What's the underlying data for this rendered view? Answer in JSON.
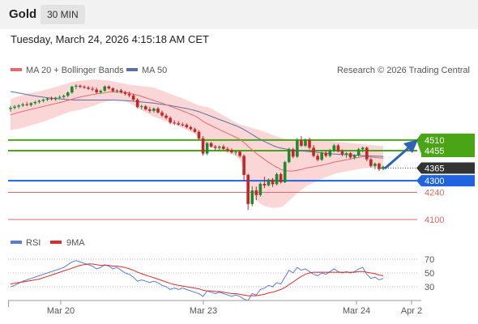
{
  "header": {
    "instrument": "Gold",
    "timeframe": "30 MIN",
    "datetime": "Tuesday, March 24, 2026 4:15:18 AM CET"
  },
  "legend": {
    "ma20": "MA 20 + Bollinger Bands",
    "ma50": "MA 50",
    "copyright": "Research © 2026 Trading Central",
    "rsi": "RSI",
    "rsi_ma": "9MA"
  },
  "colors": {
    "candle_up": "#1e8a2e",
    "candle_down": "#c42626",
    "ma20": "#e26a6a",
    "ma50": "#5b6fa8",
    "bollinger_fill": "#fbd6d6",
    "resistance": "#4aa516",
    "pivot": "#1f63e0",
    "support": "#e06a6a",
    "last_price": "#333333",
    "rsi": "#5b7bd6",
    "rsi_ma": "#d33030"
  },
  "chart_data": {
    "type": "candlestick",
    "x_ticks": [
      "Mar 20",
      "Mar 23",
      "Mar 24",
      "Apr 2"
    ],
    "last_price": "4365",
    "levels": [
      {
        "value": "4510",
        "type": "resistance"
      },
      {
        "value": "4455",
        "type": "resistance"
      },
      {
        "value": "4300",
        "type": "pivot"
      },
      {
        "value": "4240",
        "type": "support"
      },
      {
        "value": "4100",
        "type": "support"
      }
    ],
    "ohlc": [
      [
        4670,
        4685,
        4655,
        4676
      ],
      [
        4676,
        4690,
        4668,
        4682
      ],
      [
        4682,
        4695,
        4672,
        4688
      ],
      [
        4688,
        4702,
        4680,
        4694
      ],
      [
        4694,
        4706,
        4684,
        4690
      ],
      [
        4690,
        4704,
        4682,
        4700
      ],
      [
        4700,
        4712,
        4692,
        4706
      ],
      [
        4706,
        4718,
        4698,
        4712
      ],
      [
        4712,
        4724,
        4704,
        4718
      ],
      [
        4718,
        4730,
        4710,
        4724
      ],
      [
        4724,
        4734,
        4714,
        4720
      ],
      [
        4720,
        4732,
        4712,
        4728
      ],
      [
        4728,
        4740,
        4720,
        4732
      ],
      [
        4732,
        4744,
        4724,
        4738
      ],
      [
        4738,
        4760,
        4730,
        4755
      ],
      [
        4755,
        4790,
        4748,
        4785
      ],
      [
        4785,
        4798,
        4772,
        4790
      ],
      [
        4790,
        4796,
        4778,
        4784
      ],
      [
        4784,
        4792,
        4774,
        4780
      ],
      [
        4780,
        4788,
        4768,
        4774
      ],
      [
        4774,
        4784,
        4762,
        4770
      ],
      [
        4770,
        4780,
        4748,
        4756
      ],
      [
        4756,
        4770,
        4748,
        4764
      ],
      [
        4764,
        4792,
        4760,
        4786
      ],
      [
        4786,
        4792,
        4770,
        4776
      ],
      [
        4776,
        4782,
        4756,
        4762
      ],
      [
        4762,
        4772,
        4752,
        4766
      ],
      [
        4766,
        4774,
        4750,
        4756
      ],
      [
        4756,
        4764,
        4740,
        4748
      ],
      [
        4748,
        4760,
        4730,
        4740
      ],
      [
        4740,
        4748,
        4710,
        4718
      ],
      [
        4718,
        4726,
        4672,
        4680
      ],
      [
        4680,
        4692,
        4668,
        4684
      ],
      [
        4684,
        4690,
        4662,
        4668
      ],
      [
        4668,
        4680,
        4650,
        4660
      ],
      [
        4660,
        4678,
        4652,
        4672
      ],
      [
        4672,
        4680,
        4646,
        4652
      ],
      [
        4652,
        4662,
        4628,
        4636
      ],
      [
        4636,
        4646,
        4616,
        4624
      ],
      [
        4624,
        4632,
        4592,
        4600
      ],
      [
        4600,
        4612,
        4588,
        4596
      ],
      [
        4596,
        4608,
        4584,
        4590
      ],
      [
        4590,
        4600,
        4580,
        4588
      ],
      [
        4588,
        4596,
        4570,
        4576
      ],
      [
        4576,
        4584,
        4560,
        4566
      ],
      [
        4566,
        4574,
        4548,
        4552
      ],
      [
        4552,
        4560,
        4510,
        4518
      ],
      [
        4518,
        4530,
        4430,
        4440
      ],
      [
        4440,
        4500,
        4432,
        4494
      ],
      [
        4494,
        4500,
        4470,
        4476
      ],
      [
        4476,
        4484,
        4456,
        4470
      ],
      [
        4470,
        4482,
        4454,
        4476
      ],
      [
        4476,
        4486,
        4458,
        4464
      ],
      [
        4464,
        4474,
        4448,
        4458
      ],
      [
        4458,
        4466,
        4440,
        4446
      ],
      [
        4446,
        4456,
        4432,
        4450
      ],
      [
        4450,
        4456,
        4420,
        4428
      ],
      [
        4428,
        4436,
        4300,
        4330
      ],
      [
        4330,
        4336,
        4150,
        4180
      ],
      [
        4180,
        4272,
        4168,
        4250
      ],
      [
        4250,
        4270,
        4200,
        4226
      ],
      [
        4226,
        4292,
        4218,
        4284
      ],
      [
        4284,
        4320,
        4262,
        4276
      ],
      [
        4276,
        4312,
        4270,
        4306
      ],
      [
        4306,
        4314,
        4268,
        4282
      ],
      [
        4282,
        4342,
        4276,
        4334
      ],
      [
        4334,
        4342,
        4286,
        4292
      ],
      [
        4292,
        4402,
        4288,
        4396
      ],
      [
        4396,
        4470,
        4390,
        4462
      ],
      [
        4462,
        4470,
        4416,
        4424
      ],
      [
        4424,
        4520,
        4418,
        4508
      ],
      [
        4508,
        4530,
        4474,
        4480
      ],
      [
        4480,
        4518,
        4474,
        4512
      ],
      [
        4512,
        4522,
        4462,
        4470
      ],
      [
        4470,
        4484,
        4420,
        4428
      ],
      [
        4428,
        4440,
        4400,
        4408
      ],
      [
        4408,
        4450,
        4402,
        4444
      ],
      [
        4444,
        4456,
        4420,
        4428
      ],
      [
        4428,
        4464,
        4420,
        4456
      ],
      [
        4456,
        4490,
        4448,
        4482
      ],
      [
        4482,
        4490,
        4446,
        4452
      ],
      [
        4452,
        4462,
        4426,
        4436
      ],
      [
        4436,
        4448,
        4418,
        4442
      ],
      [
        4442,
        4448,
        4414,
        4420
      ],
      [
        4420,
        4436,
        4410,
        4430
      ],
      [
        4430,
        4470,
        4424,
        4462
      ],
      [
        4462,
        4476,
        4446,
        4470
      ],
      [
        4470,
        4476,
        4400,
        4410
      ],
      [
        4410,
        4418,
        4368,
        4376
      ],
      [
        4376,
        4394,
        4360,
        4388
      ],
      [
        4388,
        4394,
        4350,
        4360
      ],
      [
        4360,
        4378,
        4354,
        4372
      ]
    ],
    "ma20": [
      4640,
      4646,
      4652,
      4658,
      4663,
      4668,
      4673,
      4678,
      4683,
      4688,
      4693,
      4698,
      4703,
      4708,
      4714,
      4720,
      4726,
      4731,
      4736,
      4740,
      4744,
      4748,
      4751,
      4754,
      4757,
      4758,
      4758,
      4757,
      4755,
      4752,
      4747,
      4741,
      4735,
      4728,
      4721,
      4714,
      4707,
      4700,
      4692,
      4684,
      4676,
      4668,
      4660,
      4652,
      4643,
      4634,
      4622,
      4606,
      4595,
      4584,
      4574,
      4564,
      4554,
      4544,
      4534,
      4524,
      4513,
      4498,
      4477,
      4459,
      4441,
      4425,
      4410,
      4395,
      4382,
      4370,
      4358,
      4352,
      4350,
      4350,
      4354,
      4358,
      4364,
      4368,
      4372,
      4376,
      4380,
      4385,
      4390,
      4396,
      4400,
      4404,
      4408,
      4412,
      4416,
      4420,
      4424,
      4424,
      4422,
      4420,
      4418,
      4416
    ],
    "ma50": [
      4760,
      4756,
      4752,
      4748,
      4744,
      4740,
      4737,
      4734,
      4731,
      4728,
      4726,
      4724,
      4722,
      4720,
      4718,
      4717,
      4716,
      4716,
      4716,
      4716,
      4716,
      4716,
      4716,
      4716,
      4716,
      4716,
      4715,
      4714,
      4713,
      4712,
      4710,
      4708,
      4706,
      4704,
      4702,
      4700,
      4697,
      4694,
      4691,
      4688,
      4684,
      4680,
      4676,
      4672,
      4667,
      4662,
      4656,
      4648,
      4640,
      4632,
      4624,
      4616,
      4608,
      4600,
      4592,
      4584,
      4575,
      4564,
      4551,
      4538,
      4525,
      4513,
      4502,
      4492,
      4482,
      4474,
      4468,
      4464,
      4461,
      4458,
      4456,
      4454,
      4452,
      4450,
      4448,
      4446,
      4444,
      4442,
      4440,
      4438,
      4436,
      4435,
      4434,
      4433,
      4432,
      4431,
      4430,
      4429,
      4428,
      4427,
      4426,
      4425
    ],
    "bb_upper": [
      4720,
      4728,
      4736,
      4742,
      4748,
      4752,
      4756,
      4760,
      4766,
      4772,
      4778,
      4784,
      4790,
      4796,
      4802,
      4808,
      4812,
      4816,
      4818,
      4820,
      4822,
      4822,
      4820,
      4818,
      4816,
      4812,
      4808,
      4804,
      4800,
      4796,
      4792,
      4790,
      4788,
      4786,
      4784,
      4780,
      4772,
      4764,
      4756,
      4748,
      4740,
      4732,
      4724,
      4716,
      4706,
      4696,
      4688,
      4684,
      4680,
      4672,
      4660,
      4648,
      4636,
      4624,
      4612,
      4600,
      4590,
      4584,
      4578,
      4572,
      4566,
      4560,
      4552,
      4544,
      4536,
      4528,
      4522,
      4516,
      4512,
      4510,
      4508,
      4506,
      4506,
      4508,
      4510,
      4512,
      4512,
      4510,
      4506,
      4502,
      4500,
      4498,
      4496,
      4494,
      4492,
      4490,
      4488,
      4486,
      4484,
      4482,
      4480,
      4478
    ],
    "bb_lower": [
      4560,
      4564,
      4568,
      4574,
      4580,
      4586,
      4592,
      4598,
      4604,
      4612,
      4620,
      4628,
      4636,
      4644,
      4652,
      4658,
      4662,
      4666,
      4672,
      4678,
      4684,
      4692,
      4700,
      4706,
      4710,
      4714,
      4714,
      4712,
      4708,
      4700,
      4690,
      4676,
      4664,
      4652,
      4640,
      4630,
      4622,
      4614,
      4606,
      4598,
      4590,
      4582,
      4572,
      4562,
      4552,
      4540,
      4524,
      4496,
      4480,
      4470,
      4462,
      4456,
      4450,
      4444,
      4436,
      4428,
      4408,
      4360,
      4290,
      4240,
      4200,
      4180,
      4170,
      4164,
      4160,
      4160,
      4164,
      4176,
      4196,
      4216,
      4236,
      4252,
      4268,
      4280,
      4290,
      4300,
      4310,
      4318,
      4326,
      4334,
      4340,
      4344,
      4348,
      4352,
      4356,
      4360,
      4364,
      4366,
      4366,
      4366,
      4366,
      4366
    ],
    "rsi": {
      "ticks": [
        "70",
        "50",
        "30"
      ],
      "values": [
        30,
        32,
        35,
        38,
        40,
        42,
        44,
        46,
        48,
        50,
        52,
        54,
        56,
        58,
        62,
        66,
        68,
        66,
        64,
        62,
        60,
        56,
        58,
        62,
        60,
        56,
        58,
        54,
        50,
        48,
        44,
        38,
        40,
        38,
        36,
        38,
        36,
        32,
        30,
        26,
        28,
        26,
        28,
        26,
        24,
        22,
        20,
        16,
        24,
        22,
        20,
        22,
        20,
        18,
        16,
        18,
        16,
        12,
        10,
        20,
        18,
        26,
        28,
        32,
        30,
        36,
        34,
        44,
        54,
        50,
        58,
        54,
        56,
        52,
        48,
        46,
        50,
        48,
        52,
        56,
        52,
        50,
        52,
        50,
        52,
        56,
        58,
        48,
        42,
        44,
        40,
        42
      ],
      "ma": [
        34,
        35,
        36,
        37,
        38,
        39,
        40,
        41,
        43,
        45,
        47,
        49,
        51,
        53,
        55,
        57,
        59,
        61,
        62,
        63,
        63,
        62,
        61,
        61,
        61,
        60,
        60,
        59,
        58,
        56,
        54,
        51,
        49,
        47,
        45,
        43,
        41,
        39,
        37,
        35,
        33,
        32,
        31,
        30,
        29,
        28,
        27,
        25,
        24,
        24,
        23,
        23,
        22,
        21,
        20,
        20,
        19,
        18,
        17,
        17,
        17,
        18,
        19,
        21,
        22,
        24,
        26,
        29,
        33,
        37,
        41,
        45,
        48,
        50,
        51,
        51,
        51,
        51,
        51,
        51,
        51,
        51,
        51,
        51,
        51,
        52,
        52,
        51,
        50,
        49,
        47,
        46
      ]
    }
  }
}
